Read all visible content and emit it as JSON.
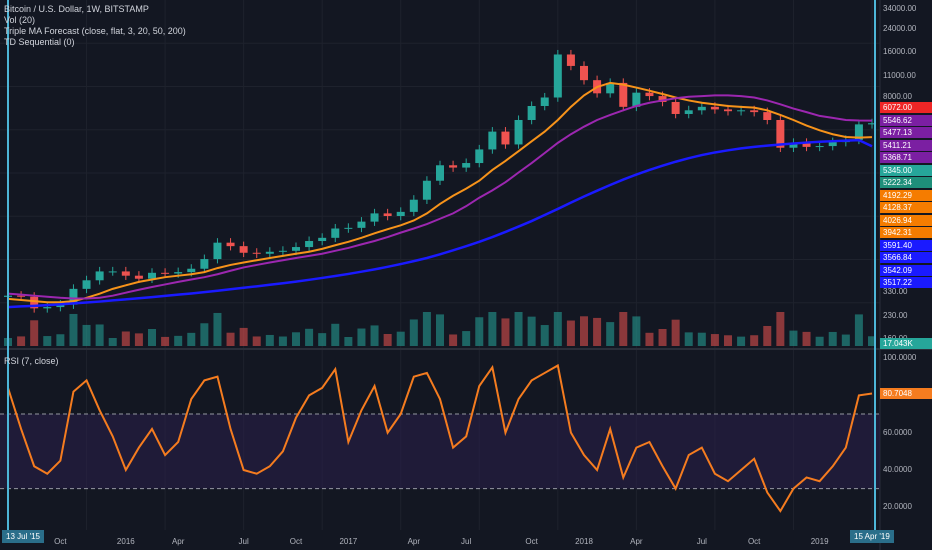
{
  "legend": {
    "title": "Bitcoin / U.S. Dollar, 1W, BITSTAMP",
    "vol": "Vol (20)",
    "triple_ma": "Triple MA Forecast (close, flat, 3, 20, 50, 200)",
    "td": "TD Sequential (0)",
    "rsi": "RSI (7, close)"
  },
  "colors": {
    "background": "#131722",
    "ma_fast": "#f7931a",
    "ma_mid": "#9c27b0",
    "ma_slow": "#1a1aff",
    "rsi": "#f57c1f",
    "candle_up": "#26a69a",
    "candle_down": "#ef5350",
    "cursor": "#4db6d8"
  },
  "price_axis": {
    "ticks": [
      "34000.00",
      "24000.00",
      "16000.00",
      "11000.00",
      "8000.00",
      "330.00",
      "230.00",
      "160.00"
    ],
    "badges": [
      {
        "text": "6072.00",
        "color": "#ef2626"
      },
      {
        "text": "5546.62",
        "color": "#7b1fa2"
      },
      {
        "text": "5477.13",
        "color": "#7b1fa2"
      },
      {
        "text": "5411.21",
        "color": "#7b1fa2"
      },
      {
        "text": "5368.71",
        "color": "#7b1fa2"
      },
      {
        "text": "5345.00",
        "color": "#26a69a"
      },
      {
        "text": "5222.34",
        "color": "#1e8f7a"
      },
      {
        "text": "4192.29",
        "color": "#f57c00"
      },
      {
        "text": "4128.37",
        "color": "#f57c00"
      },
      {
        "text": "4026.94",
        "color": "#f57c00"
      },
      {
        "text": "3942.31",
        "color": "#f57c00"
      },
      {
        "text": "3591.40",
        "color": "#1a1aff"
      },
      {
        "text": "3566.84",
        "color": "#1a1aff"
      },
      {
        "text": "3542.09",
        "color": "#1a1aff"
      },
      {
        "text": "3517.22",
        "color": "#1a1aff"
      },
      {
        "text": "17.043K",
        "color": "#26a69a"
      }
    ]
  },
  "rsi_axis": {
    "ticks": [
      "100.0000",
      "60.0000",
      "40.0000",
      "20.0000"
    ],
    "current": "80.7048"
  },
  "time_axis": {
    "start_badge": "13 Jul '15",
    "end_badge": "15 Apr '19",
    "ticks": [
      "Oct",
      "2016",
      "Apr",
      "Jul",
      "Oct",
      "2017",
      "Apr",
      "Jul",
      "Oct",
      "2018",
      "Apr",
      "Jul",
      "Oct",
      "2019"
    ]
  },
  "chart_data": [
    {
      "type": "line",
      "title": "Bitcoin / U.S. Dollar, 1W, BITSTAMP",
      "scale": "log",
      "ylim": [
        130,
        40000
      ],
      "x": [
        "2015-07-13",
        "2015-08-03",
        "2015-08-24",
        "2015-09-14",
        "2015-10-05",
        "2015-10-26",
        "2015-11-16",
        "2015-12-07",
        "2015-12-28",
        "2016-01-18",
        "2016-02-08",
        "2016-02-29",
        "2016-03-21",
        "2016-04-11",
        "2016-05-02",
        "2016-05-23",
        "2016-06-13",
        "2016-07-04",
        "2016-07-25",
        "2016-08-15",
        "2016-09-05",
        "2016-09-26",
        "2016-10-17",
        "2016-11-07",
        "2016-11-28",
        "2016-12-19",
        "2017-01-09",
        "2017-01-30",
        "2017-02-20",
        "2017-03-13",
        "2017-04-03",
        "2017-04-24",
        "2017-05-15",
        "2017-06-05",
        "2017-06-26",
        "2017-07-17",
        "2017-08-07",
        "2017-08-28",
        "2017-09-18",
        "2017-10-09",
        "2017-10-30",
        "2017-11-20",
        "2017-12-11",
        "2018-01-01",
        "2018-01-22",
        "2018-02-12",
        "2018-03-05",
        "2018-03-26",
        "2018-04-16",
        "2018-05-07",
        "2018-05-28",
        "2018-06-18",
        "2018-07-09",
        "2018-07-30",
        "2018-08-20",
        "2018-09-10",
        "2018-10-01",
        "2018-10-22",
        "2018-11-12",
        "2018-12-03",
        "2018-12-24",
        "2019-01-14",
        "2019-02-04",
        "2019-02-25",
        "2019-03-18",
        "2019-04-08",
        "2019-04-15"
      ],
      "series": [
        {
          "values": [
            285,
            280,
            230,
            235,
            245,
            320,
            370,
            430,
            430,
            400,
            380,
            420,
            415,
            425,
            450,
            530,
            700,
            660,
            590,
            580,
            600,
            610,
            650,
            720,
            760,
            890,
            900,
            1000,
            1150,
            1100,
            1180,
            1450,
            2000,
            2600,
            2500,
            2700,
            3400,
            4600,
            3700,
            5600,
            7100,
            8200,
            17000,
            14000,
            11000,
            8800,
            10500,
            7000,
            8900,
            8400,
            7600,
            6200,
            6600,
            7000,
            6700,
            6500,
            6600,
            6400,
            5600,
            3500,
            3800,
            3550,
            3600,
            3850,
            4000,
            5200,
            5300
          ]
        },
        {
          "name": "MA 20",
          "values": [
            270,
            265,
            260,
            255,
            255,
            260,
            275,
            295,
            320,
            340,
            360,
            375,
            390,
            400,
            410,
            425,
            455,
            480,
            500,
            520,
            540,
            560,
            580,
            600,
            630,
            670,
            710,
            760,
            820,
            880,
            940,
            1020,
            1150,
            1350,
            1550,
            1750,
            2000,
            2400,
            2800,
            3300,
            3900,
            4600,
            5600,
            7000,
            8500,
            9800,
            10500,
            10200,
            9700,
            9200,
            8700,
            8200,
            7800,
            7500,
            7300,
            7100,
            7000,
            6900,
            6600,
            6100,
            5600,
            5100,
            4700,
            4400,
            4200,
            4150,
            4192
          ]
        },
        {
          "name": "MA 50",
          "values": [
            295,
            290,
            285,
            280,
            275,
            272,
            272,
            275,
            285,
            300,
            315,
            330,
            345,
            360,
            375,
            390,
            410,
            435,
            460,
            480,
            500,
            520,
            540,
            560,
            580,
            610,
            640,
            680,
            720,
            770,
            830,
            890,
            960,
            1050,
            1150,
            1300,
            1500,
            1700,
            1950,
            2300,
            2700,
            3200,
            3800,
            4400,
            5000,
            5600,
            6100,
            6600,
            7100,
            7500,
            7800,
            8100,
            8300,
            8400,
            8500,
            8500,
            8400,
            8200,
            7800,
            7300,
            6800,
            6400,
            6000,
            5800,
            5600,
            5550,
            5546
          ]
        },
        {
          "name": "MA 200",
          "values": [
            235,
            238,
            240,
            243,
            246,
            250,
            254,
            258,
            263,
            268,
            273,
            278,
            284,
            290,
            296,
            303,
            310,
            318,
            326,
            334,
            343,
            352,
            362,
            373,
            385,
            398,
            412,
            428,
            445,
            465,
            487,
            512,
            540,
            575,
            615,
            660,
            710,
            770,
            840,
            920,
            1010,
            1120,
            1240,
            1380,
            1530,
            1690,
            1860,
            2040,
            2220,
            2400,
            2580,
            2760,
            2930,
            3090,
            3230,
            3350,
            3460,
            3550,
            3630,
            3700,
            3760,
            3820,
            3870,
            3910,
            3950,
            3980,
            3591
          ]
        }
      ]
    },
    {
      "type": "line",
      "title": "RSI (7, close)",
      "ylim": [
        10,
        100
      ],
      "x": [
        "2015-07-13",
        "2015-08-03",
        "2015-08-24",
        "2015-09-14",
        "2015-10-05",
        "2015-10-26",
        "2015-11-16",
        "2015-12-07",
        "2015-12-28",
        "2016-01-18",
        "2016-02-08",
        "2016-02-29",
        "2016-03-21",
        "2016-04-11",
        "2016-05-02",
        "2016-05-23",
        "2016-06-13",
        "2016-07-04",
        "2016-07-25",
        "2016-08-15",
        "2016-09-05",
        "2016-09-26",
        "2016-10-17",
        "2016-11-07",
        "2016-11-28",
        "2016-12-19",
        "2017-01-09",
        "2017-01-30",
        "2017-02-20",
        "2017-03-13",
        "2017-04-03",
        "2017-04-24",
        "2017-05-15",
        "2017-06-05",
        "2017-06-26",
        "2017-07-17",
        "2017-08-07",
        "2017-08-28",
        "2017-09-18",
        "2017-10-09",
        "2017-10-30",
        "2017-11-20",
        "2017-12-11",
        "2018-01-01",
        "2018-01-22",
        "2018-02-12",
        "2018-03-05",
        "2018-03-26",
        "2018-04-16",
        "2018-05-07",
        "2018-05-28",
        "2018-06-18",
        "2018-07-09",
        "2018-07-30",
        "2018-08-20",
        "2018-09-10",
        "2018-10-01",
        "2018-10-22",
        "2018-11-12",
        "2018-12-03",
        "2018-12-24",
        "2019-01-14",
        "2019-02-04",
        "2019-02-25",
        "2019-03-18",
        "2019-04-08",
        "2019-04-15"
      ],
      "series": [
        {
          "name": "RSI",
          "values": [
            84,
            62,
            42,
            38,
            45,
            82,
            88,
            72,
            58,
            40,
            52,
            62,
            48,
            55,
            78,
            88,
            90,
            62,
            40,
            38,
            42,
            50,
            68,
            80,
            84,
            94,
            55,
            72,
            85,
            60,
            70,
            90,
            92,
            78,
            52,
            58,
            85,
            95,
            60,
            78,
            88,
            92,
            96,
            60,
            48,
            40,
            62,
            36,
            52,
            55,
            42,
            30,
            48,
            52,
            38,
            34,
            40,
            46,
            28,
            18,
            30,
            36,
            34,
            42,
            52,
            80,
            81
          ]
        }
      ],
      "hlines": [
        70,
        30
      ]
    }
  ]
}
